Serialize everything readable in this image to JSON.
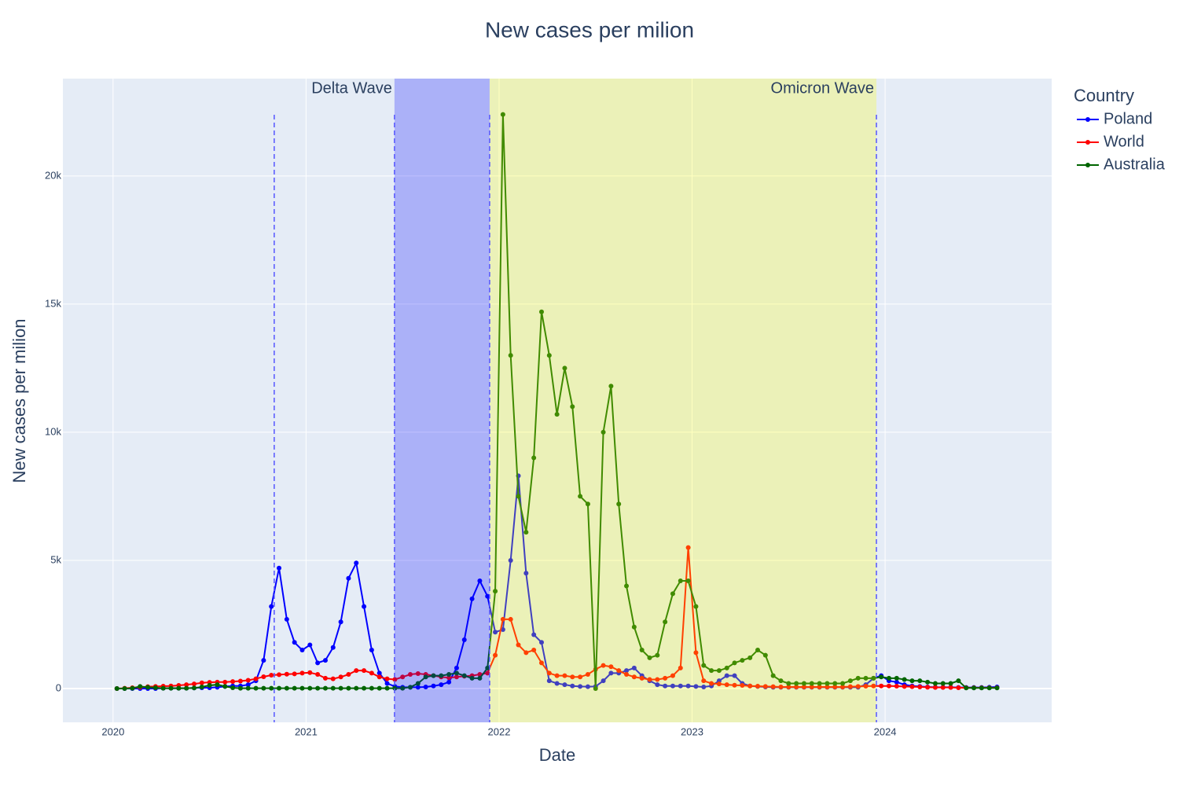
{
  "chart_data": {
    "type": "line",
    "title": "New cases per milion",
    "x_label": "Date",
    "y_label": "New cases per milion",
    "legend_title": "Country",
    "legend": "top-right-outside",
    "grid": true,
    "xlim": [
      2019.74,
      2024.863
    ],
    "ylim": [
      -1320,
      23800
    ],
    "xticks": [
      2020,
      2021,
      2022,
      2023,
      2024
    ],
    "yticks": [
      0,
      {
        "value": 5000,
        "label": "5k"
      },
      {
        "value": 10000,
        "label": "10k"
      },
      {
        "value": 15000,
        "label": "15k"
      },
      {
        "value": 20000,
        "label": "20k"
      }
    ],
    "x": [
      2020.02,
      2020.06,
      2020.1,
      2020.14,
      2020.18,
      2020.22,
      2020.26,
      2020.3,
      2020.34,
      2020.38,
      2020.42,
      2020.46,
      2020.5,
      2020.54,
      2020.58,
      2020.62,
      2020.66,
      2020.7,
      2020.74,
      2020.78,
      2020.82,
      2020.86,
      2020.9,
      2020.94,
      2020.98,
      2021.02,
      2021.06,
      2021.1,
      2021.14,
      2021.18,
      2021.22,
      2021.26,
      2021.3,
      2021.34,
      2021.38,
      2021.42,
      2021.46,
      2021.5,
      2021.54,
      2021.58,
      2021.62,
      2021.66,
      2021.7,
      2021.74,
      2021.78,
      2021.82,
      2021.86,
      2021.9,
      2021.94,
      2021.98,
      2022.02,
      2022.06,
      2022.1,
      2022.14,
      2022.18,
      2022.22,
      2022.26,
      2022.3,
      2022.34,
      2022.38,
      2022.42,
      2022.46,
      2022.5,
      2022.54,
      2022.58,
      2022.62,
      2022.66,
      2022.7,
      2022.74,
      2022.78,
      2022.82,
      2022.86,
      2022.9,
      2022.94,
      2022.98,
      2023.02,
      2023.06,
      2023.1,
      2023.14,
      2023.18,
      2023.22,
      2023.26,
      2023.3,
      2023.34,
      2023.38,
      2023.42,
      2023.46,
      2023.5,
      2023.54,
      2023.58,
      2023.62,
      2023.66,
      2023.7,
      2023.74,
      2023.78,
      2023.82,
      2023.86,
      2023.9,
      2023.94,
      2023.98,
      2024.02,
      2024.06,
      2024.1,
      2024.14,
      2024.18,
      2024.22,
      2024.26,
      2024.3,
      2024.34,
      2024.38,
      2024.42,
      2024.46,
      2024.5,
      2024.54,
      2024.58
    ],
    "series": [
      {
        "name": "Poland",
        "color": "#0000ff",
        "values": [
          0,
          0,
          0,
          0,
          0,
          0,
          10,
          10,
          10,
          10,
          20,
          30,
          30,
          50,
          80,
          100,
          100,
          150,
          300,
          1100,
          3200,
          4700,
          2700,
          1800,
          1500,
          1700,
          1000,
          1100,
          1600,
          2600,
          4300,
          4900,
          3200,
          1500,
          600,
          200,
          80,
          50,
          50,
          50,
          60,
          100,
          150,
          250,
          800,
          1900,
          3500,
          4200,
          3600,
          2200,
          2300,
          5000,
          8300,
          4500,
          2100,
          1800,
          300,
          200,
          150,
          100,
          80,
          70,
          80,
          300,
          600,
          600,
          700,
          800,
          500,
          300,
          150,
          100,
          100,
          100,
          100,
          80,
          60,
          100,
          300,
          500,
          500,
          200,
          100,
          80,
          60,
          50,
          50,
          50,
          50,
          50,
          50,
          50,
          50,
          50,
          50,
          50,
          50,
          150,
          400,
          500,
          300,
          250,
          150,
          100,
          80,
          60,
          50,
          50,
          50,
          40,
          40,
          40,
          40,
          50,
          60
        ]
      },
      {
        "name": "World",
        "color": "#ff0000",
        "values": [
          0,
          10,
          30,
          50,
          70,
          80,
          90,
          100,
          120,
          150,
          180,
          220,
          240,
          250,
          250,
          270,
          290,
          320,
          380,
          460,
          520,
          540,
          560,
          570,
          600,
          620,
          550,
          400,
          380,
          450,
          550,
          700,
          700,
          600,
          450,
          380,
          350,
          450,
          550,
          580,
          550,
          500,
          450,
          420,
          450,
          480,
          500,
          550,
          600,
          1300,
          2700,
          2700,
          1700,
          1400,
          1500,
          1000,
          600,
          500,
          500,
          450,
          450,
          550,
          750,
          900,
          850,
          700,
          550,
          450,
          400,
          350,
          350,
          400,
          500,
          800,
          5500,
          1400,
          300,
          200,
          180,
          150,
          130,
          120,
          100,
          90,
          80,
          70,
          60,
          60,
          60,
          60,
          60,
          60,
          60,
          60,
          60,
          70,
          80,
          90,
          100,
          100,
          100,
          90,
          80,
          70,
          60,
          50,
          40,
          40,
          40,
          30,
          30,
          30,
          30,
          30,
          30
        ]
      },
      {
        "name": "Australia",
        "color": "#006400",
        "values": [
          0,
          0,
          10,
          80,
          50,
          30,
          10,
          10,
          10,
          10,
          20,
          60,
          120,
          150,
          80,
          30,
          10,
          10,
          10,
          10,
          10,
          10,
          10,
          10,
          10,
          10,
          10,
          10,
          10,
          10,
          10,
          10,
          10,
          10,
          10,
          10,
          10,
          10,
          50,
          200,
          450,
          500,
          500,
          550,
          600,
          500,
          400,
          400,
          800,
          3800,
          22400,
          13000,
          7500,
          6100,
          9000,
          14700,
          13000,
          10700,
          12500,
          11000,
          7500,
          7200,
          0,
          10000,
          11800,
          7200,
          4000,
          2400,
          1500,
          1200,
          1300,
          2600,
          3700,
          4200,
          4200,
          3200,
          900,
          700,
          700,
          800,
          1000,
          1100,
          1200,
          1500,
          1300,
          500,
          300,
          200,
          200,
          200,
          200,
          200,
          200,
          200,
          200,
          300,
          400,
          400,
          400,
          450,
          400,
          400,
          350,
          300,
          300,
          250,
          200,
          200,
          200,
          300,
          20,
          20,
          20,
          20,
          20
        ]
      }
    ],
    "shapes": [
      {
        "x0": 2021.458,
        "x1": 2021.951,
        "color": "#0000ff",
        "opacity": 0.25
      },
      {
        "x0": 2021.951,
        "x1": 2023.955,
        "color": "#ffff00",
        "opacity": 0.25
      }
    ],
    "vlines": [
      2020.835,
      2021.458,
      2021.951,
      2023.955
    ],
    "vline_color": "#5555ff",
    "annotations": [
      {
        "text": "Delta Wave",
        "x": 2021.458
      },
      {
        "text": "Omicron Wave",
        "x": 2023.955
      }
    ]
  }
}
